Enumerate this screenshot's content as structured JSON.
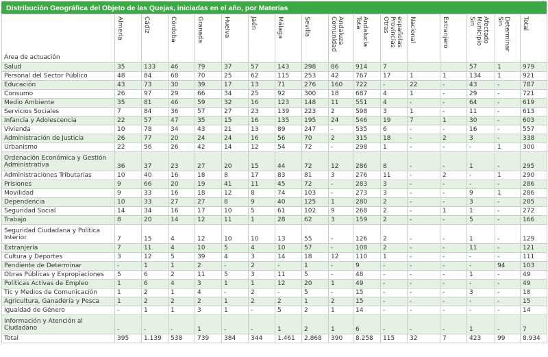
{
  "title": "Distribución Geográfica del Objeto de las Quejas, iniciadas en el año,  por Materias",
  "area_header": "Área de actuación",
  "columns": [
    [
      "Almería"
    ],
    [
      "Cádiz"
    ],
    [
      "Córdoba"
    ],
    [
      "Granada"
    ],
    [
      "Huelva"
    ],
    [
      "Jaén"
    ],
    [
      "Málaga"
    ],
    [
      "Sevilla"
    ],
    [
      "Comunidad",
      "Andaluza"
    ],
    [
      "Tota",
      "Andalucía"
    ],
    [
      "Otras",
      "Provincias",
      "españolas"
    ],
    [
      "Nacional"
    ],
    [
      "Extranjero"
    ],
    [
      "Sin",
      "Municipio",
      "Afectado"
    ],
    [
      "Sin",
      "Determinar"
    ],
    [
      "Total"
    ]
  ],
  "rows": [
    {
      "label": [
        "Salud"
      ],
      "values": [
        "35",
        "133",
        "46",
        "79",
        "37",
        "57",
        "143",
        "298",
        "86",
        "914",
        "7",
        "",
        "",
        "57",
        "1",
        "979"
      ]
    },
    {
      "label": [
        "Personal del Sector Público"
      ],
      "values": [
        "48",
        "84",
        "68",
        "70",
        "25",
        "62",
        "115",
        "253",
        "42",
        "767",
        "17",
        "1",
        "1",
        "134",
        "1",
        "921"
      ]
    },
    {
      "label": [
        "Educación"
      ],
      "values": [
        "43",
        "73",
        "30",
        "39",
        "17",
        "13",
        "71",
        "276",
        "160",
        "722",
        "-",
        "22",
        "-",
        "43",
        "-",
        "787"
      ]
    },
    {
      "label": [
        "Consumo"
      ],
      "values": [
        "26",
        "97",
        "29",
        "66",
        "34",
        "25",
        "92",
        "300",
        "18",
        "687",
        "4",
        "1",
        "-",
        "29",
        "-",
        "721"
      ]
    },
    {
      "label": [
        "Medio Ambiente"
      ],
      "values": [
        "35",
        "81",
        "46",
        "59",
        "32",
        "16",
        "123",
        "148",
        "11",
        "551",
        "4",
        "-",
        "-",
        "64",
        "-",
        "619"
      ]
    },
    {
      "label": [
        "Servicios Sociales"
      ],
      "values": [
        "7",
        "84",
        "36",
        "57",
        "27",
        "23",
        "139",
        "223",
        "2",
        "598",
        "3",
        "1",
        "-",
        "11",
        "-",
        "613"
      ]
    },
    {
      "label": [
        "Infancia y Adolescencia"
      ],
      "values": [
        "22",
        "57",
        "47",
        "35",
        "15",
        "16",
        "135",
        "195",
        "24",
        "546",
        "19",
        "7",
        "1",
        "30",
        "-",
        "603"
      ]
    },
    {
      "label": [
        "Vivienda"
      ],
      "values": [
        "10",
        "78",
        "34",
        "43",
        "21",
        "13",
        "89",
        "247",
        "-",
        "535",
        "6",
        "-",
        "-",
        "16",
        "-",
        "557"
      ]
    },
    {
      "label": [
        "Administración de Justicia"
      ],
      "values": [
        "26",
        "77",
        "20",
        "24",
        "24",
        "16",
        "56",
        "70",
        "2",
        "315",
        "18",
        "-",
        "2",
        "3",
        "-",
        "338"
      ]
    },
    {
      "label": [
        "Urbanismo"
      ],
      "values": [
        "22",
        "56",
        "26",
        "42",
        "14",
        "12",
        "54",
        "72",
        "-",
        "298",
        "1",
        "-",
        "-",
        "-",
        "1",
        "300"
      ]
    },
    {
      "label": [
        "Ordenación Económica y Gestión",
        "Administrativa"
      ],
      "values": [
        "36",
        "37",
        "23",
        "27",
        "20",
        "15",
        "44",
        "72",
        "12",
        "286",
        "8",
        "-",
        "-",
        "1",
        "-",
        "295"
      ]
    },
    {
      "label": [
        "Administraciones Tributarias"
      ],
      "values": [
        "10",
        "40",
        "16",
        "18",
        "8",
        "17",
        "83",
        "81",
        "3",
        "276",
        "11",
        "-",
        "2",
        "-",
        "1",
        "290"
      ]
    },
    {
      "label": [
        "Prisiones"
      ],
      "values": [
        "9",
        "66",
        "20",
        "19",
        "41",
        "11",
        "45",
        "72",
        "-",
        "283",
        "3",
        "-",
        "-",
        "-",
        "-",
        "286"
      ]
    },
    {
      "label": [
        "Movilidad"
      ],
      "values": [
        "9",
        "33",
        "16",
        "18",
        "12",
        "8",
        "74",
        "103",
        "-",
        "273",
        "3",
        "-",
        "-",
        "9",
        "1",
        "286"
      ]
    },
    {
      "label": [
        "Dependencia"
      ],
      "values": [
        "10",
        "33",
        "27",
        "27",
        "8",
        "9",
        "40",
        "125",
        "1",
        "280",
        "2",
        "-",
        "-",
        "3",
        "-",
        "285"
      ]
    },
    {
      "label": [
        "Seguridad Social"
      ],
      "values": [
        "14",
        "34",
        "16",
        "17",
        "10",
        "5",
        "61",
        "102",
        "9",
        "268",
        "2",
        "-",
        "1",
        "1",
        "-",
        "272"
      ]
    },
    {
      "label": [
        "Trabajo"
      ],
      "values": [
        "8",
        "20",
        "14",
        "12",
        "11",
        "1",
        "28",
        "62",
        "3",
        "159",
        "2",
        "-",
        "-",
        "5",
        "-",
        "166"
      ]
    },
    {
      "label": [
        "Seguridad Ciudadana y Política",
        "Interior"
      ],
      "values": [
        "7",
        "15",
        "4",
        "12",
        "10",
        "10",
        "13",
        "55",
        "-",
        "126",
        "2",
        "-",
        "-",
        "1",
        "-",
        "129"
      ]
    },
    {
      "label": [
        "Extranjería"
      ],
      "values": [
        "7",
        "11",
        "4",
        "10",
        "5",
        "4",
        "10",
        "57",
        "-",
        "108",
        "2",
        "-",
        "-",
        "11",
        "-",
        "121"
      ]
    },
    {
      "label": [
        "Cultura y Deportes"
      ],
      "values": [
        "3",
        "12",
        "5",
        "39",
        "4",
        "3",
        "14",
        "18",
        "12",
        "110",
        "1",
        "-",
        "-",
        "-",
        "-",
        "111"
      ]
    },
    {
      "label": [
        "Pendiente de Determinar"
      ],
      "values": [
        "-",
        "1",
        "1",
        "2",
        "-",
        "2",
        "-",
        "1",
        "-",
        "9",
        "-",
        "-",
        "-",
        "-",
        "94",
        "103"
      ]
    },
    {
      "label": [
        "Obras Públicas y Expropiaciones"
      ],
      "values": [
        "5",
        "6",
        "2",
        "11",
        "5",
        "3",
        "11",
        "5",
        "-",
        "48",
        "-",
        "-",
        "-",
        "1",
        "-",
        "49"
      ]
    },
    {
      "label": [
        "Políticas Activas de Empleo"
      ],
      "values": [
        "1",
        "6",
        "4",
        "3",
        "1",
        "1",
        "12",
        "20",
        "1",
        "49",
        "-",
        "-",
        "-",
        "-",
        "-",
        "49"
      ]
    },
    {
      "label": [
        "Tic y Medios de Comunicación"
      ],
      "values": [
        "1",
        "2",
        "1",
        "4",
        "-",
        "2",
        "-",
        "5",
        "-",
        "15",
        "-",
        "-",
        "-",
        "3",
        "-",
        "18"
      ]
    },
    {
      "label": [
        "Agricultura, Ganadería y Pesca"
      ],
      "values": [
        "1",
        "2",
        "2",
        "2",
        "1",
        "2",
        "2",
        "1",
        "2",
        "15",
        "-",
        "-",
        "-",
        "-",
        "-",
        "15"
      ]
    },
    {
      "label": [
        "Igualdad de Género"
      ],
      "values": [
        "-",
        "1",
        "1",
        "3",
        "1",
        "-",
        "5",
        "2",
        "1",
        "14",
        "-",
        "-",
        "-",
        "-",
        "-",
        "14"
      ]
    },
    {
      "label": [
        "Información y Atención al",
        "Ciudadano"
      ],
      "values": [
        "-",
        "-",
        "-",
        "1",
        "-",
        "-",
        "1",
        "2",
        "1",
        "6",
        "-",
        "-",
        "-",
        "1",
        "-",
        "7"
      ]
    },
    {
      "label": [
        "Total"
      ],
      "values": [
        "395",
        "1.139",
        "538",
        "739",
        "384",
        "344",
        "1.461",
        "2.868",
        "390",
        "8.258",
        "115",
        "32",
        "7",
        "423",
        "99",
        "8.934"
      ]
    }
  ],
  "colors": {
    "header_green": "#3da946",
    "row_stripe": "#e5f1e2",
    "border": "#c9cfc9"
  }
}
